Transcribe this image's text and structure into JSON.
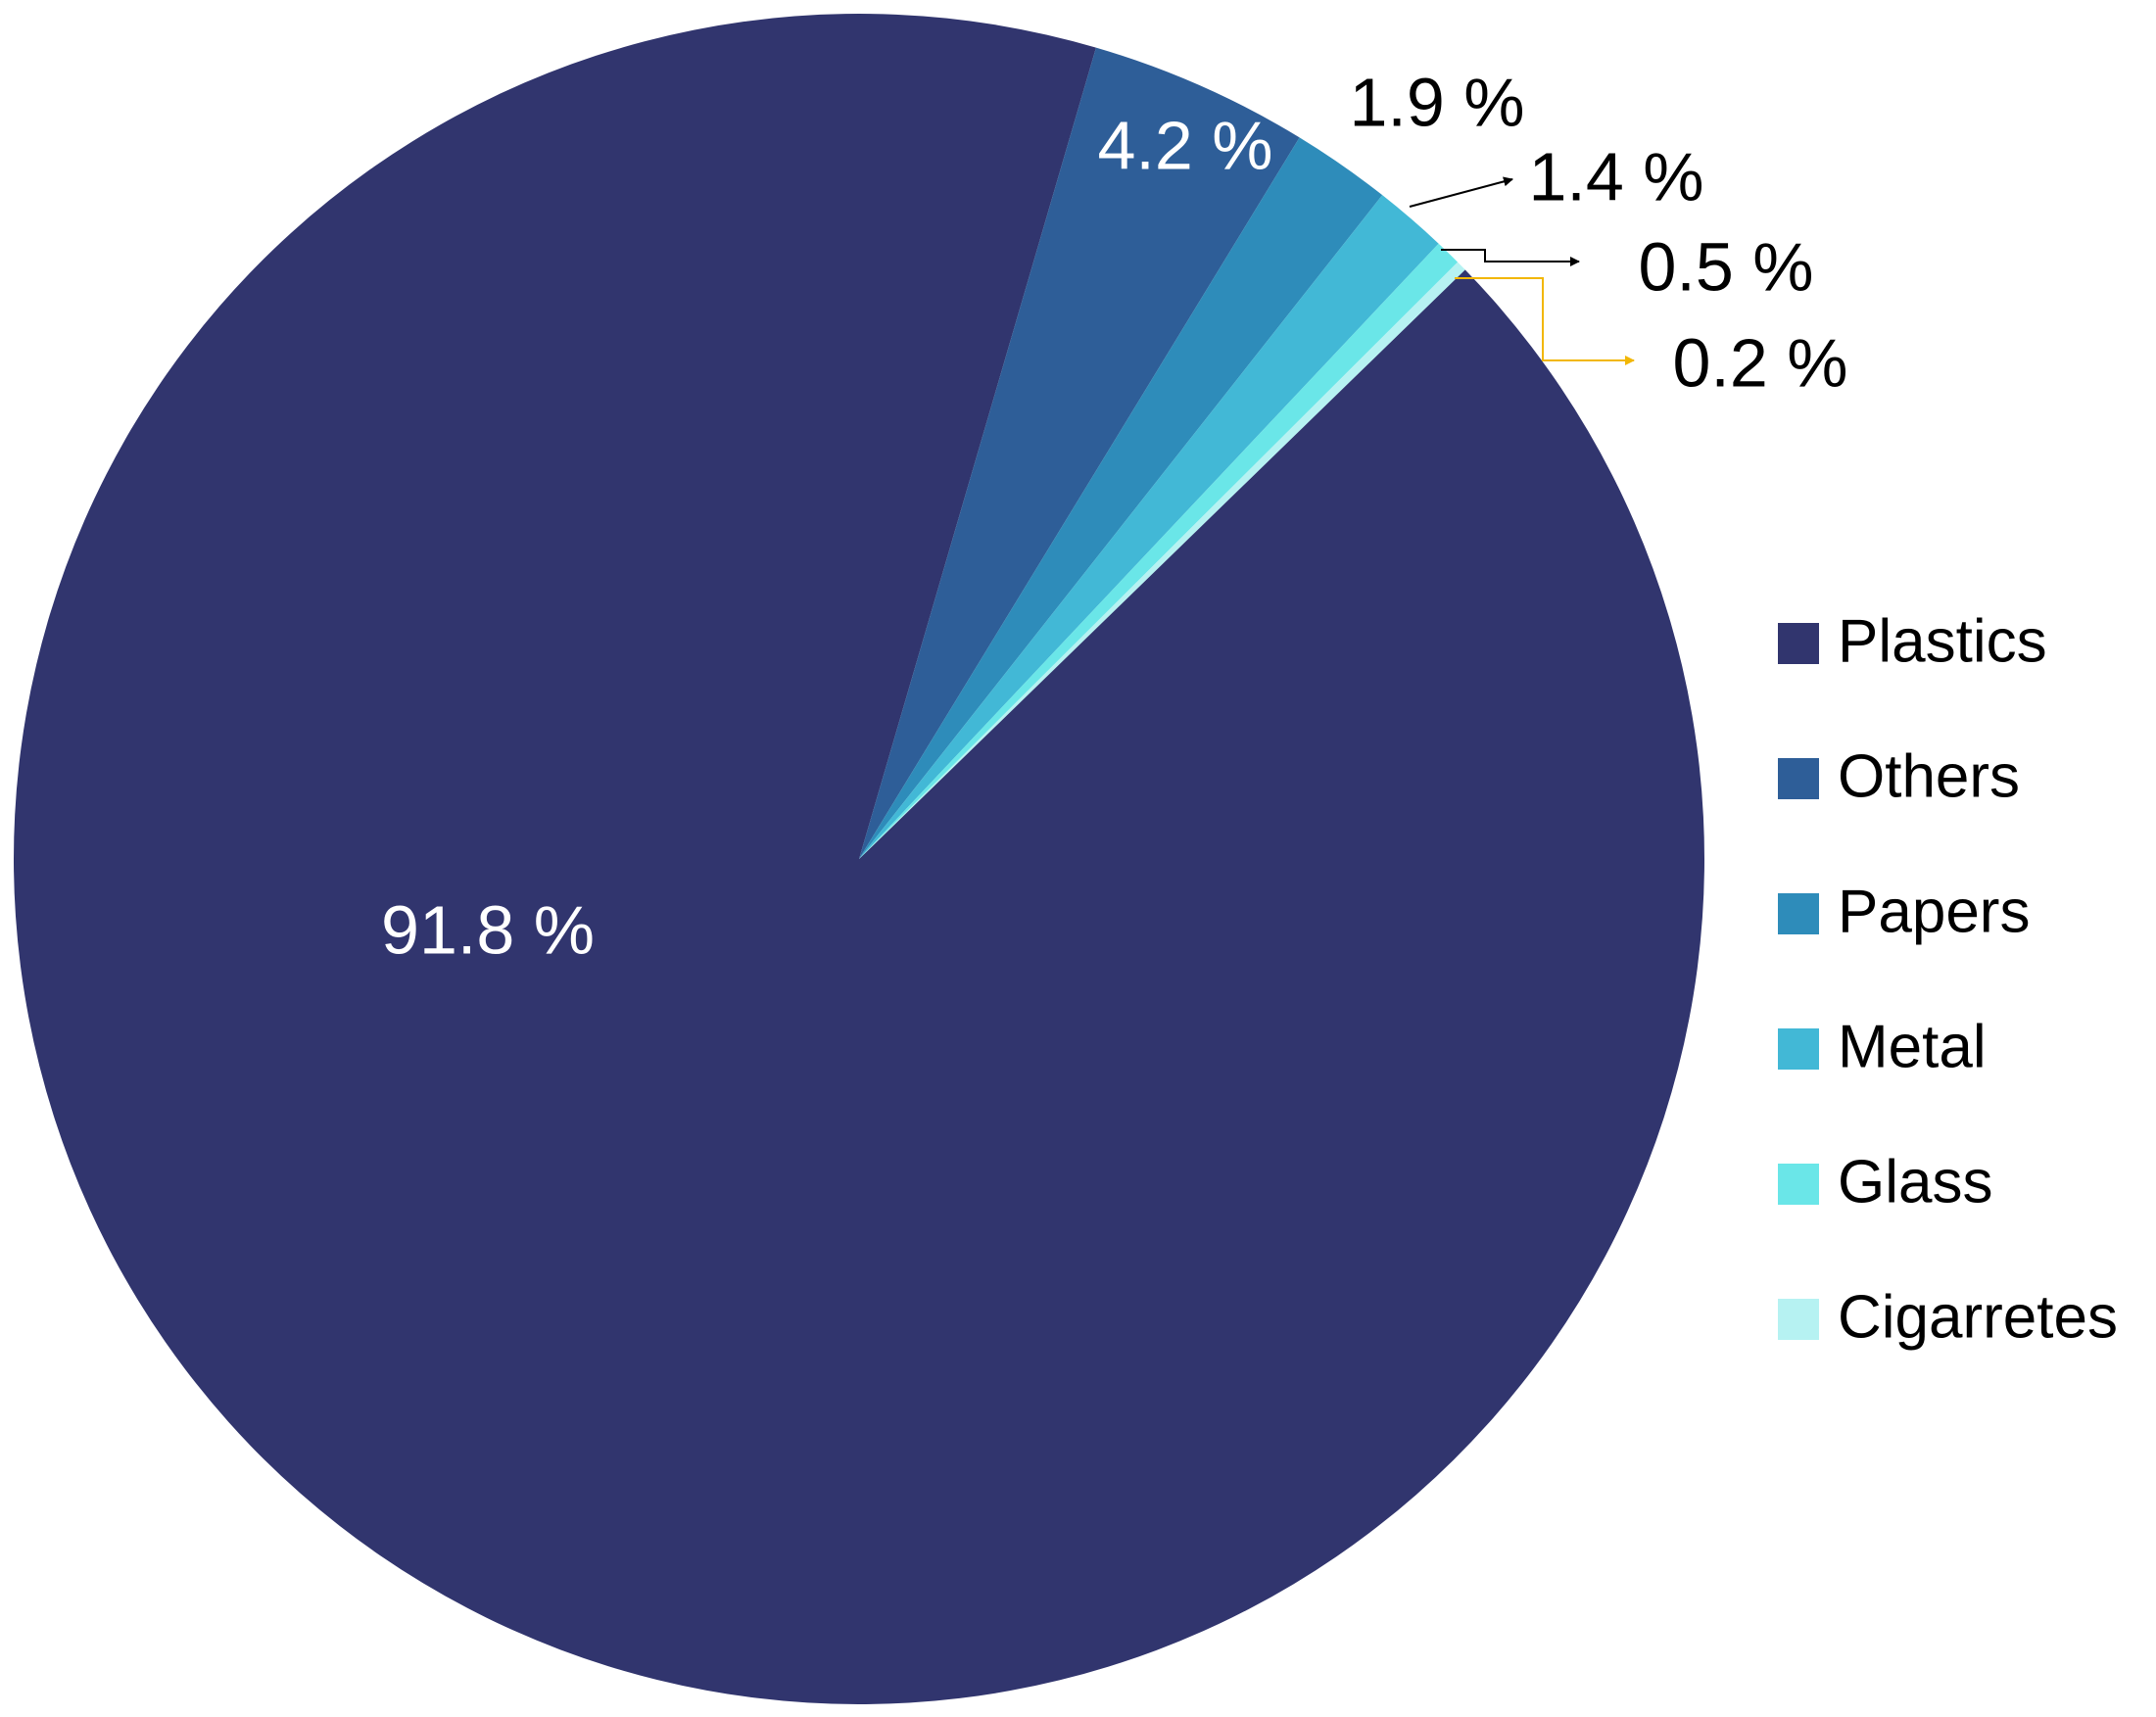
{
  "chart_data": {
    "type": "pie",
    "categories": [
      "Plastics",
      "Others",
      "Papers",
      "Metal",
      "Glass",
      "Cigarretes"
    ],
    "values": [
      91.8,
      4.2,
      1.9,
      1.4,
      0.5,
      0.2
    ],
    "value_labels": [
      "91.8 %",
      "4.2 %",
      "1.9 %",
      "1.4 %",
      "0.5 %",
      "0.2 %"
    ],
    "colors": [
      "#31356e",
      "#2e5e98",
      "#2e8cba",
      "#42b8d6",
      "#6ae6e8",
      "#b6f2f2"
    ],
    "legend": "right"
  }
}
